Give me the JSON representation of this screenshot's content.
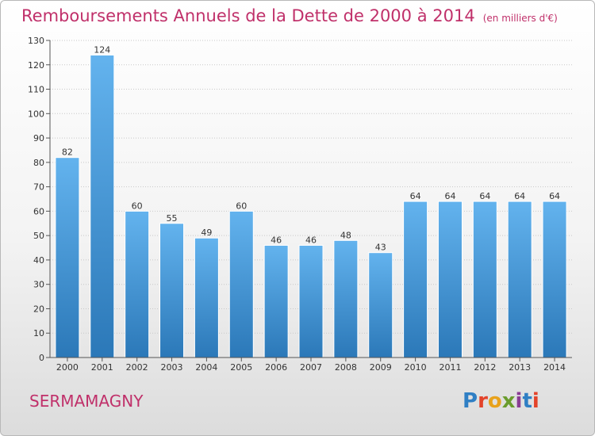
{
  "header": {
    "title": "Remboursements Annuels de la Dette de 2000 à 2014",
    "unit": "(en milliers d'€)"
  },
  "footer": {
    "commune": "SERMAMAGNY",
    "logo": "Proxiti",
    "logo_colors": [
      "#2f7fc4",
      "#e3432a",
      "#e8a21c",
      "#6a9c2d",
      "#8a3d94",
      "#2f7fc4",
      "#e3432a"
    ]
  },
  "colors": {
    "title": "#c0306a",
    "bar_light": "#63b3ee",
    "bar_dark": "#2b78b8"
  },
  "chart_data": {
    "type": "bar",
    "categories": [
      "2000",
      "2001",
      "2002",
      "2003",
      "2004",
      "2005",
      "2006",
      "2007",
      "2008",
      "2009",
      "2010",
      "2011",
      "2012",
      "2013",
      "2014"
    ],
    "values": [
      82,
      124,
      60,
      55,
      49,
      60,
      46,
      46,
      48,
      43,
      64,
      64,
      64,
      64,
      64
    ],
    "title": "Remboursements Annuels de la Dette de 2000 à 2014",
    "xlabel": "",
    "ylabel": "",
    "ylim": [
      0,
      130
    ],
    "yticks": [
      0,
      10,
      20,
      30,
      40,
      50,
      60,
      70,
      80,
      90,
      100,
      110,
      120,
      130
    ],
    "grid": "horizontal dotted",
    "data_labels": true
  }
}
